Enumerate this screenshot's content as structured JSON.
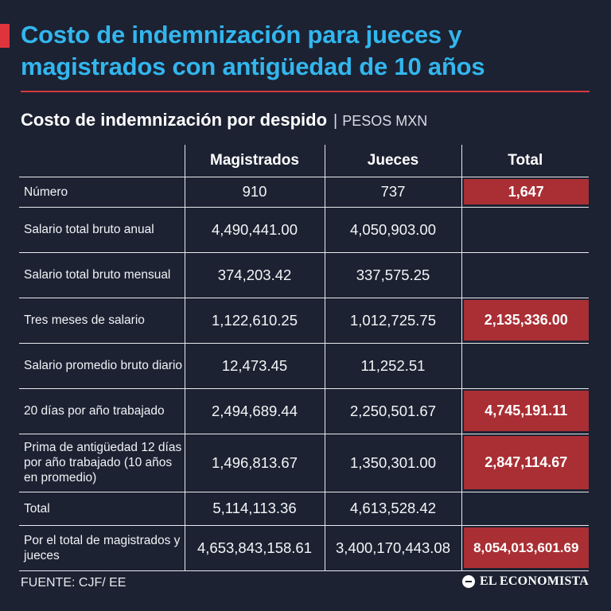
{
  "headline": "Costo de indemnización para jueces y magistrados con antigüedad de 10 años",
  "subhead": {
    "title": "Costo de indemnización por despido",
    "separator": "|",
    "unit": "PESOS MXN"
  },
  "table": {
    "columns": [
      "Magistrados",
      "Jueces",
      "Total"
    ],
    "rows": [
      {
        "label": "Número",
        "magistrados": "910",
        "jueces": "737",
        "total": "1,647"
      },
      {
        "label": "Salario total bruto anual",
        "magistrados": "4,490,441.00",
        "jueces": "4,050,903.00",
        "total": ""
      },
      {
        "label": "Salario total bruto mensual",
        "magistrados": "374,203.42",
        "jueces": "337,575.25",
        "total": ""
      },
      {
        "label": "Tres meses de salario",
        "magistrados": "1,122,610.25",
        "jueces": "1,012,725.75",
        "total": "2,135,336.00"
      },
      {
        "label": "Salario promedio bruto diario",
        "magistrados": "12,473.45",
        "jueces": "11,252.51",
        "total": ""
      },
      {
        "label": "20 días por año trabajado",
        "magistrados": "2,494,689.44",
        "jueces": "2,250,501.67",
        "total": "4,745,191.11"
      },
      {
        "label": "Prima de antigüedad 12 días por año trabajado (10 años en promedio)",
        "magistrados": "1,496,813.67",
        "jueces": "1,350,301.00",
        "total": "2,847,114.67"
      },
      {
        "label": "Total",
        "magistrados": "5,114,113.36",
        "jueces": "4,613,528.42",
        "total": ""
      },
      {
        "label": "Por el total de magistrados y jueces",
        "magistrados": "4,653,843,158.61",
        "jueces": "3,400,170,443.08",
        "total": "8,054,013,601.69"
      }
    ]
  },
  "footer": {
    "source": "FUENTE: CJF/ EE",
    "logo": "EL ECONOMISTA"
  },
  "colors": {
    "background": "#1c2232",
    "headline": "#33b6ee",
    "accent_red": "#e0343c",
    "total_box": "#a92f34"
  }
}
